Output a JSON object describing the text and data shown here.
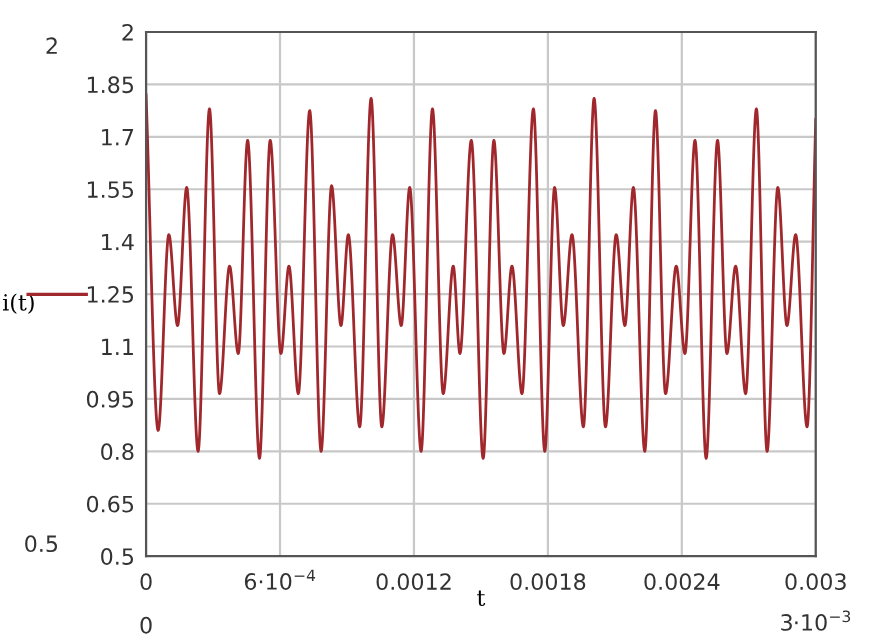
{
  "chart_data": {
    "type": "line",
    "xlabel": "t",
    "ylabel": "i(t)",
    "x": [
      0,
      5.4e-05,
      0.000102,
      0.000141,
      0.000182,
      0.000233,
      0.000284,
      0.000329,
      0.000374,
      0.000413,
      0.000455,
      0.000508,
      0.000556,
      0.000604,
      0.00064,
      0.000682,
      0.000733,
      0.000784,
      0.000831,
      0.000873,
      0.000906,
      0.000957,
      0.001008,
      0.001056,
      0.001104,
      0.001143,
      0.001181,
      0.001232,
      0.001283,
      0.001331,
      0.001376,
      0.001406,
      0.001457,
      0.00151,
      0.001558,
      0.001603,
      0.001639,
      0.001684,
      0.001735,
      0.001786,
      0.00183,
      0.001869,
      0.001908,
      0.001959,
      0.002007,
      0.002058,
      0.002106,
      0.002145,
      0.002183,
      0.002234,
      0.002282,
      0.002327,
      0.002375,
      0.002414,
      0.002459,
      0.002509,
      0.00256,
      0.002602,
      0.002641,
      0.002686,
      0.002734,
      0.002782,
      0.00283,
      0.002871,
      0.00291,
      0.002961,
      0.003
    ],
    "series": [
      {
        "color": "#a0282d",
        "values": [
          1.82,
          0.86,
          1.42,
          1.16,
          1.555,
          0.8,
          1.78,
          0.965,
          1.33,
          1.08,
          1.69,
          0.78,
          1.69,
          1.08,
          1.33,
          0.965,
          1.775,
          0.8,
          1.56,
          1.16,
          1.42,
          0.87,
          1.81,
          0.87,
          1.42,
          1.16,
          1.555,
          0.8,
          1.78,
          0.965,
          1.33,
          1.08,
          1.69,
          0.78,
          1.69,
          1.08,
          1.33,
          0.965,
          1.78,
          0.8,
          1.555,
          1.16,
          1.42,
          0.87,
          1.81,
          0.87,
          1.42,
          1.16,
          1.555,
          0.8,
          1.775,
          0.965,
          1.33,
          1.08,
          1.69,
          0.78,
          1.69,
          1.08,
          1.33,
          0.965,
          1.78,
          0.8,
          1.555,
          1.16,
          1.42,
          0.87,
          1.75
        ]
      }
    ],
    "xlim": [
      0,
      0.003
    ],
    "ylim": [
      0.5,
      2
    ],
    "xticks": [
      0,
      {
        "value": 0.0006,
        "label": "6·10$^{−4}$"
      },
      0.0012,
      0.0018,
      0.0024,
      0.003
    ],
    "yticks": [
      0.5,
      0.65,
      0.8,
      0.95,
      1.1,
      1.25,
      1.4,
      1.55,
      1.7,
      1.85,
      2
    ],
    "grid": true,
    "line_style": "solid",
    "marker": "none",
    "annotations": [
      "2",
      "0.5",
      "0",
      "3·10$^{−3}$"
    ]
  }
}
